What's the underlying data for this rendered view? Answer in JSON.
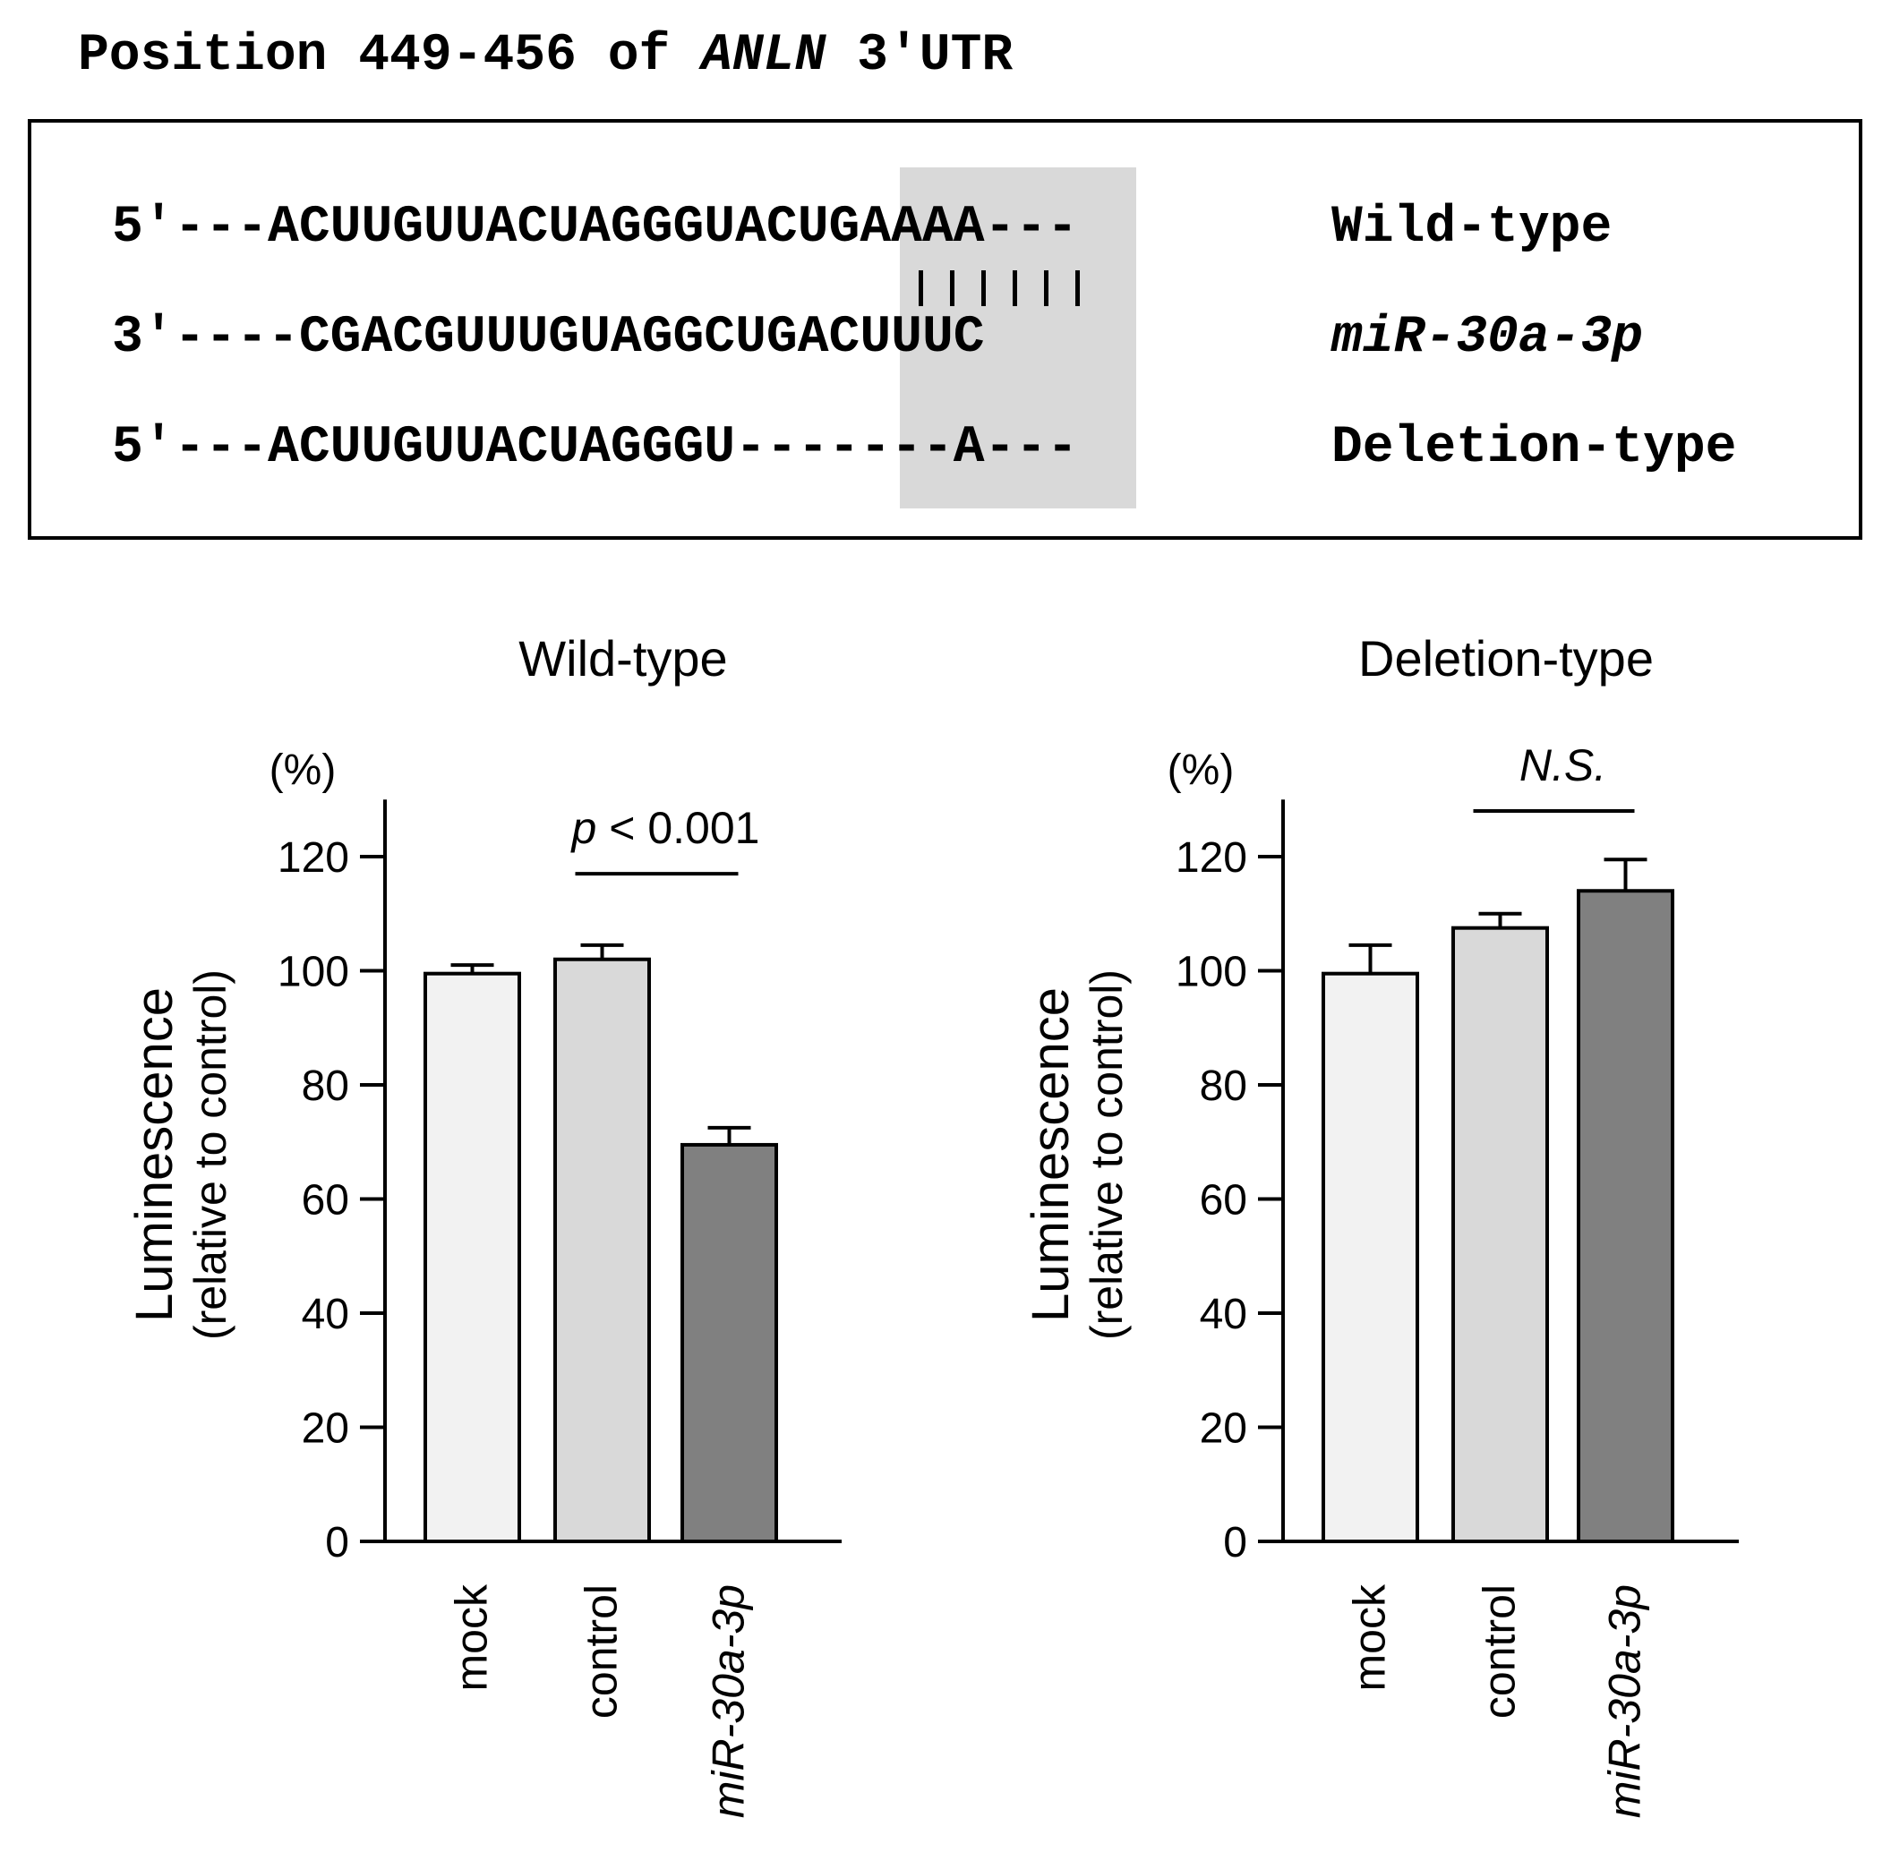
{
  "header": {
    "prefix": "Position 449-456 of ",
    "gene": "ANLN",
    "suffix": " 3′UTR"
  },
  "sequences": [
    {
      "text": "5′---ACUUGUUACUAGGGUACUGAAAA---",
      "label": "Wild-type",
      "italic": false
    },
    {
      "text": "3′----CGACGUUUGUAGGCUGACUUUC",
      "label": "miR-30a-3p",
      "italic": true
    },
    {
      "text": "5′---ACUUGUUACUAGGGU-------A---",
      "label": "Deletion-type",
      "italic": false
    }
  ],
  "chart_data": [
    {
      "type": "bar",
      "title": "Wild-type",
      "ylabel": "Luminescence",
      "ylabel_sub": "(relative to control)",
      "yunit": "(%)",
      "ylim": [
        0,
        130
      ],
      "yticks": [
        0,
        20,
        40,
        60,
        80,
        100,
        120
      ],
      "categories": [
        "mock",
        "control",
        "miR-30a-3p"
      ],
      "values": [
        99.5,
        102,
        69.5
      ],
      "errors": [
        1.5,
        2.5,
        3
      ],
      "colors": [
        "#f2f2f2",
        "#d9d9d9",
        "#808080"
      ],
      "italic_categories": [
        false,
        false,
        true
      ],
      "annotation": {
        "p": "p",
        "text": " < 0.001",
        "italic_all": false,
        "from": 1,
        "to": 2,
        "y": 117
      }
    },
    {
      "type": "bar",
      "title": "Deletion-type",
      "ylabel": "Luminescence",
      "ylabel_sub": "(relative to control)",
      "yunit": "(%)",
      "ylim": [
        0,
        130
      ],
      "yticks": [
        0,
        20,
        40,
        60,
        80,
        100,
        120
      ],
      "categories": [
        "mock",
        "control",
        "miR-30a-3p"
      ],
      "values": [
        99.5,
        107.5,
        114
      ],
      "errors": [
        5,
        2.5,
        5.5
      ],
      "colors": [
        "#f2f2f2",
        "#d9d9d9",
        "#808080"
      ],
      "italic_categories": [
        false,
        false,
        true
      ],
      "annotation": {
        "p": "",
        "text": "N.S.",
        "italic_all": true,
        "from": 1,
        "to": 2,
        "y": 128
      }
    }
  ]
}
